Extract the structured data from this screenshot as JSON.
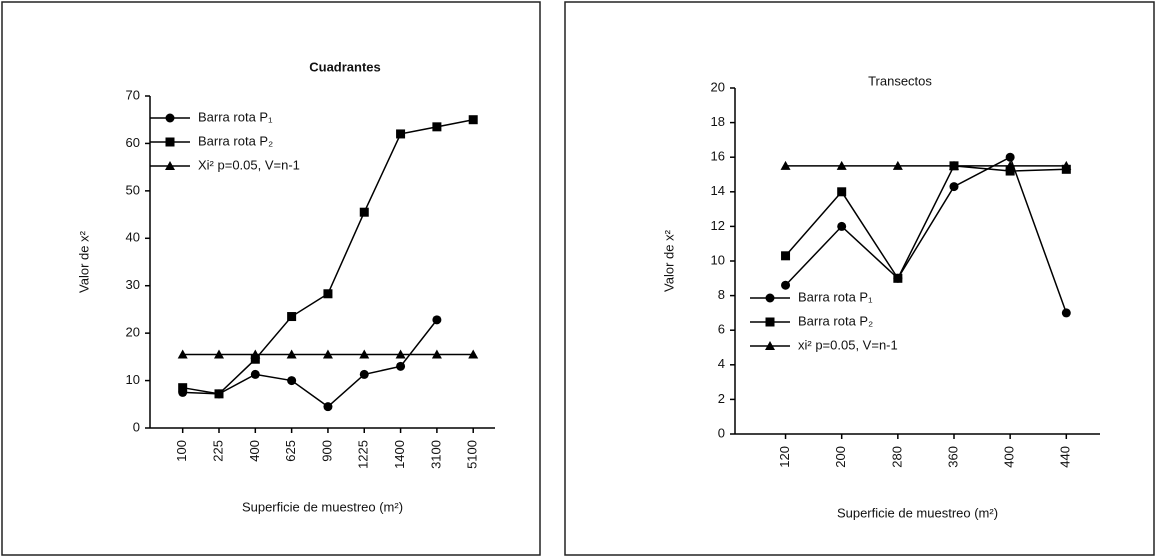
{
  "chart_data": [
    {
      "type": "line",
      "title": "Cuadrantes",
      "x_label": "Superficie de muestreo (m²)",
      "y_label": "Valor de x²",
      "categories": [
        "100",
        "225",
        "400",
        "625",
        "900",
        "1225",
        "1400",
        "3100",
        "5100"
      ],
      "series": [
        {
          "name": "Barra rota P₁",
          "color": "#000000",
          "marker": "circle",
          "values": [
            7.5,
            7.2,
            11.3,
            10,
            4.5,
            11.3,
            13,
            22.8,
            null
          ]
        },
        {
          "name": "Barra rota P₂",
          "color": "#000000",
          "marker": "square",
          "values": [
            8.5,
            7.2,
            14.5,
            23.5,
            28.3,
            45.5,
            62,
            63.5,
            65
          ]
        },
        {
          "name": "Xi² p=0.05, V=n-1",
          "color": "#000000",
          "marker": "triangle",
          "values": [
            15.5,
            15.5,
            15.5,
            15.5,
            15.5,
            15.5,
            15.5,
            15.5,
            15.5
          ]
        }
      ],
      "ylim": [
        0,
        70
      ],
      "yticks": [
        0,
        10,
        20,
        30,
        40,
        50,
        60,
        70
      ],
      "legend": "upper left",
      "grid": false
    },
    {
      "type": "line",
      "title": "Transectos",
      "x_label": "Superficie de muestreo (m²)",
      "y_label": "Valor de x²",
      "categories": [
        "120",
        "200",
        "280",
        "360",
        "400",
        "440"
      ],
      "series": [
        {
          "name": "Barra rota P₁",
          "color": "#000000",
          "marker": "circle",
          "values": [
            8.6,
            12,
            9,
            14.3,
            16,
            7
          ]
        },
        {
          "name": "Barra rota P₂",
          "color": "#000000",
          "marker": "square",
          "values": [
            10.3,
            14,
            9,
            15.5,
            15.2,
            15.3
          ]
        },
        {
          "name": "xi² p=0.05, V=n-1",
          "color": "#000000",
          "marker": "triangle",
          "values": [
            15.5,
            15.5,
            15.5,
            15.5,
            15.5,
            15.5
          ]
        }
      ],
      "ylim": [
        0,
        20
      ],
      "yticks": [
        0,
        2,
        4,
        6,
        8,
        10,
        12,
        14,
        16,
        18,
        20
      ],
      "legend": "lower left",
      "grid": false
    }
  ]
}
